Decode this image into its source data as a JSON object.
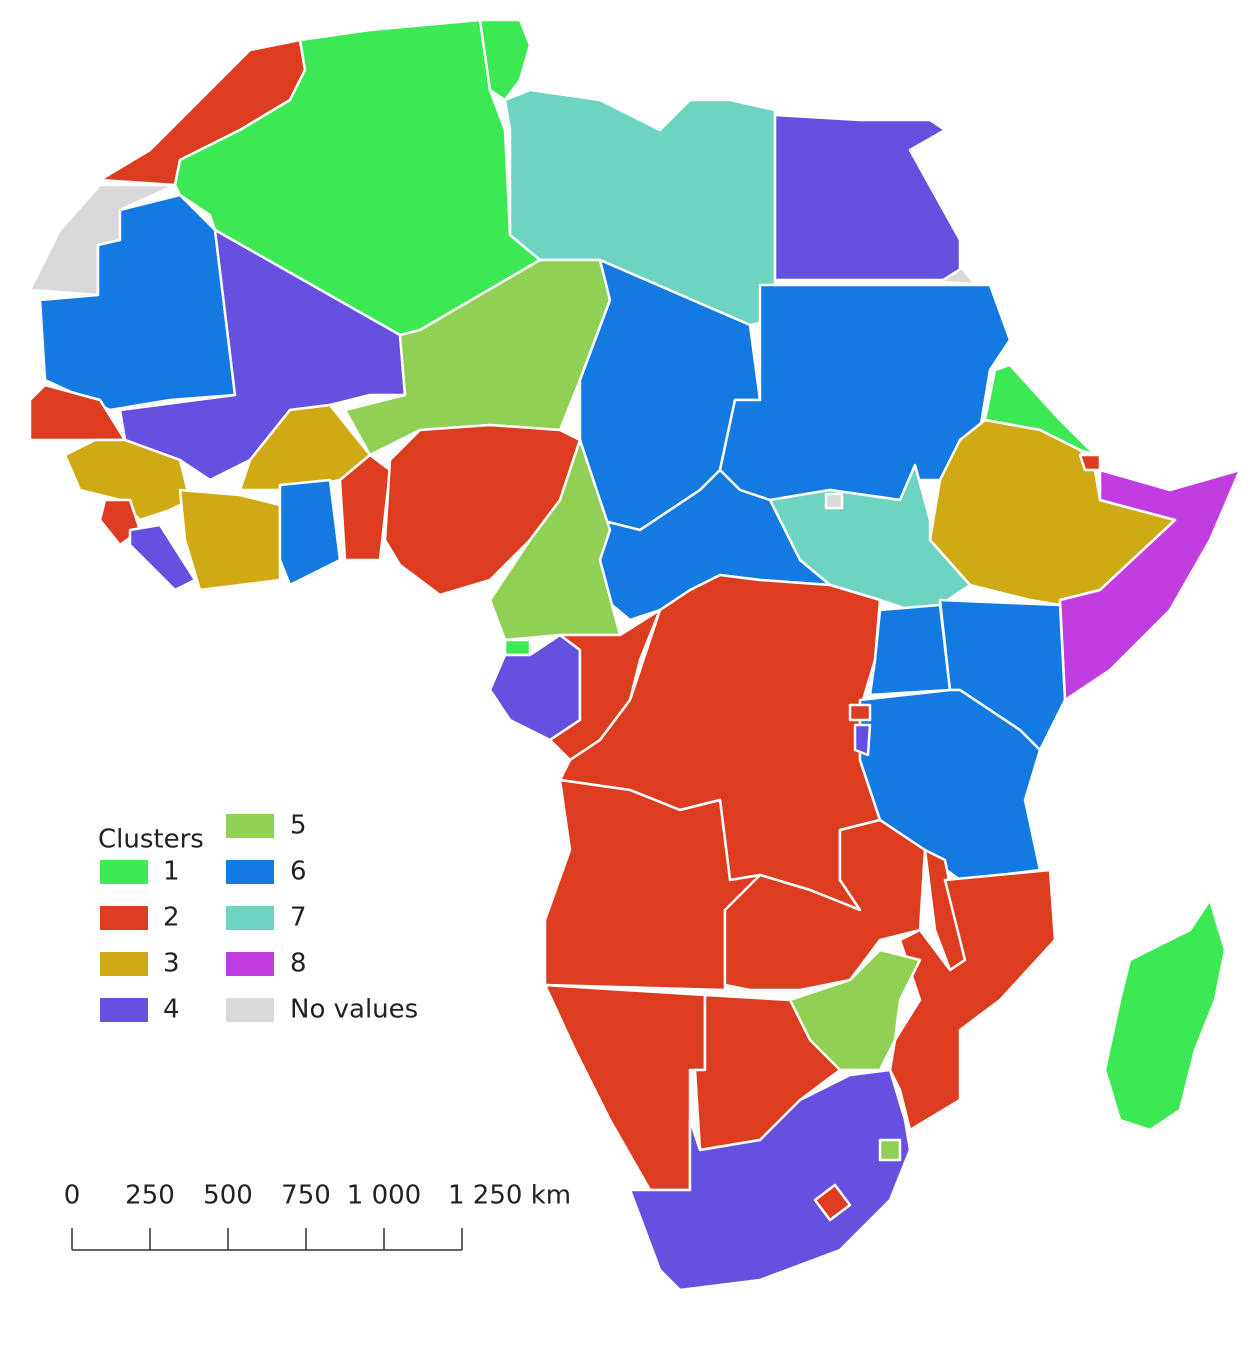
{
  "legend": {
    "title": "Clusters",
    "items": [
      {
        "label": "1",
        "color": "#3de855"
      },
      {
        "label": "2",
        "color": "#dc3c1f"
      },
      {
        "label": "3",
        "color": "#cfaa14"
      },
      {
        "label": "4",
        "color": "#6650e0"
      },
      {
        "label": "5",
        "color": "#90d054"
      },
      {
        "label": "6",
        "color": "#1479e0"
      },
      {
        "label": "7",
        "color": "#6dd4c2"
      },
      {
        "label": "8",
        "color": "#c13de0"
      },
      {
        "label": "No values",
        "color": "#d9d9d9"
      }
    ]
  },
  "scale": {
    "xlim": [
      0,
      1250
    ],
    "ticks": [
      0,
      250,
      500,
      750,
      {
        "value": 1000,
        "label": "1 000"
      },
      {
        "value": 1250,
        "label": "1 250 km"
      }
    ]
  }
}
